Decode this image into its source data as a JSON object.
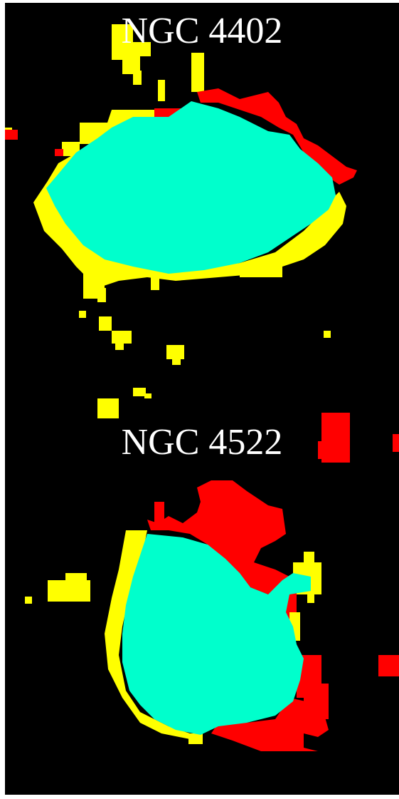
{
  "panels": [
    {
      "label": "NGC 4402"
    },
    {
      "label": "NGC 4522"
    }
  ],
  "colors": {
    "background": "#000000",
    "core": "#00ffcc",
    "yellow_region": "#ffff00",
    "red_region": "#ff0000",
    "label": "#ffffff",
    "frame": "#ffffff"
  }
}
